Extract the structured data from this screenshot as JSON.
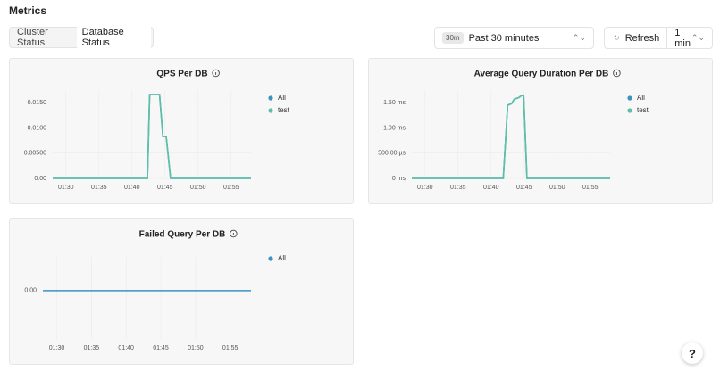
{
  "header": {
    "title": "Metrics"
  },
  "tabs": [
    "Cluster Status",
    "Database Status"
  ],
  "time_range": {
    "badge": "30m",
    "label": "Past 30 minutes"
  },
  "refresh": {
    "label": "Refresh",
    "interval": "1 min"
  },
  "help": "?",
  "chart_data": [
    {
      "type": "line",
      "title": "QPS Per DB",
      "x": [
        "01:28:00",
        "01:42:20",
        "01:42:40",
        "01:44:10",
        "01:44:40",
        "01:45:10",
        "01:45:50",
        "01:58:00"
      ],
      "series": [
        {
          "name": "All",
          "color": "#3a93c4",
          "values": [
            0,
            0,
            0.0166,
            0.0166,
            0.0083,
            0.0083,
            0,
            0
          ]
        },
        {
          "name": "test",
          "color": "#5cc0a5",
          "values": [
            0,
            0,
            0.0166,
            0.0166,
            0.0083,
            0.0083,
            0,
            0
          ]
        }
      ],
      "xlim": [
        "01:28",
        "01:58"
      ],
      "xticks": [
        "01:30",
        "01:35",
        "01:40",
        "01:45",
        "01:50",
        "01:55"
      ],
      "ylim": [
        0,
        0.0175
      ],
      "yticks": [
        {
          "value": 0,
          "label": "0.00"
        },
        {
          "value": 0.005,
          "label": "0.00500"
        },
        {
          "value": 0.01,
          "label": "0.0100"
        },
        {
          "value": 0.015,
          "label": "0.0150"
        }
      ],
      "grid": true
    },
    {
      "type": "line",
      "title": "Average Query Duration Per DB",
      "x": [
        "01:28:00",
        "01:41:50",
        "01:42:30",
        "01:43:05",
        "01:43:30",
        "01:44:10",
        "01:44:35",
        "01:44:55",
        "01:45:25",
        "01:58:00"
      ],
      "series": [
        {
          "name": "All",
          "color": "#3a93c4",
          "values": [
            0,
            0,
            1.45,
            1.48,
            1.57,
            1.6,
            1.64,
            1.64,
            0,
            0
          ]
        },
        {
          "name": "test",
          "color": "#5cc0a5",
          "values": [
            0,
            0,
            1.45,
            1.48,
            1.57,
            1.6,
            1.64,
            1.64,
            0,
            0
          ]
        }
      ],
      "xlim": [
        "01:28",
        "01:58"
      ],
      "xticks": [
        "01:30",
        "01:35",
        "01:40",
        "01:45",
        "01:50",
        "01:55"
      ],
      "ylim": [
        0,
        1.75
      ],
      "yticks": [
        {
          "value": 0,
          "label": "0 ms"
        },
        {
          "value": 0.5,
          "label": "500.00 µs"
        },
        {
          "value": 1,
          "label": "1.00 ms"
        },
        {
          "value": 1.5,
          "label": "1.50 ms"
        }
      ],
      "grid": true
    },
    {
      "type": "line",
      "title": "Failed Query Per DB",
      "x": [
        "01:28:00",
        "01:58:00"
      ],
      "series": [
        {
          "name": "All",
          "color": "#3a93c4",
          "values": [
            0,
            0
          ]
        }
      ],
      "xlim": [
        "01:28",
        "01:58"
      ],
      "xticks": [
        "01:30",
        "01:35",
        "01:40",
        "01:45",
        "01:50",
        "01:55"
      ],
      "ylim": [
        -1,
        0.7
      ],
      "yticks": [
        {
          "value": 0,
          "label": "0.00"
        }
      ],
      "grid": true
    }
  ]
}
